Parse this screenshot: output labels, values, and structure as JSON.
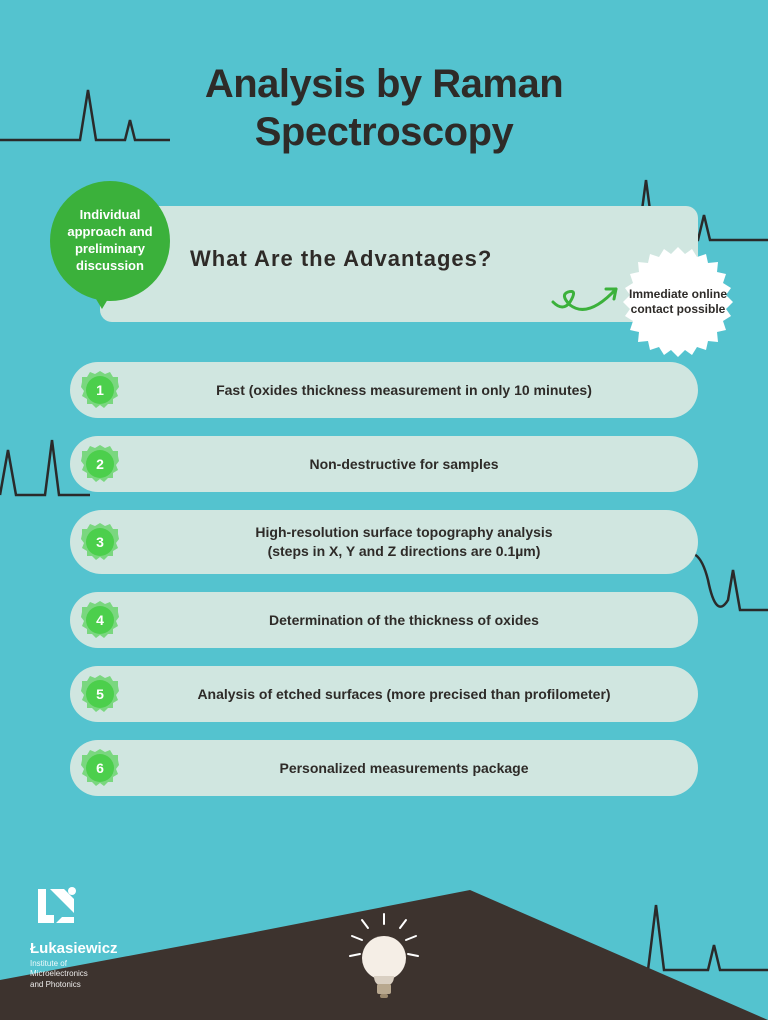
{
  "title_line1": "Analysis by Raman",
  "title_line2": "Spectroscopy",
  "header": {
    "question": "What Are the Advantages?",
    "bubble_text": "Individual approach and preliminary discussion",
    "starburst_text": "Immediate online contact possible"
  },
  "advantages": [
    {
      "num": "1",
      "text": "Fast (oxides thickness measurement in only 10 minutes)"
    },
    {
      "num": "2",
      "text": "Non-destructive for samples"
    },
    {
      "num": "3",
      "text": "High-resolution surface topography analysis\n(steps in X, Y and Z directions are 0.1µm)",
      "tall": true
    },
    {
      "num": "4",
      "text": "Determination of the thickness of oxides"
    },
    {
      "num": "5",
      "text": "Analysis of etched surfaces (more precised than profilometer)"
    },
    {
      "num": "6",
      "text": "Personalized measurements package"
    }
  ],
  "logo": {
    "name": "Łukasiewicz",
    "sub": "Institute of\nMicroelectronics\nand Photonics"
  },
  "colors": {
    "bg": "#54c3cf",
    "card": "#d0e6e0",
    "green": "#3bb13b",
    "badge_green": "#4ccf4c",
    "dark": "#2e2b28",
    "ground": "#3d332e",
    "white": "#ffffff"
  }
}
